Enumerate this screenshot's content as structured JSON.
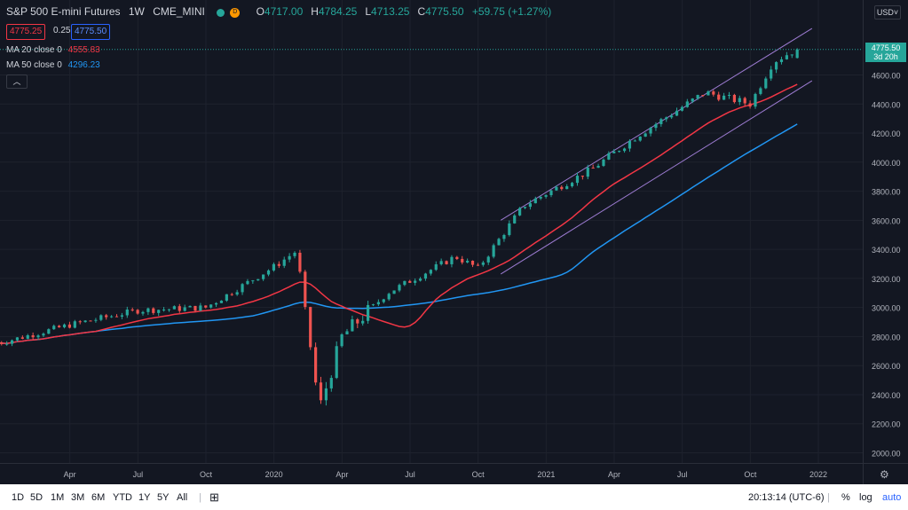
{
  "header": {
    "symbol": "S&P 500 E-mini Futures",
    "interval": "1W",
    "exchange": "CME_MINI",
    "market_status_icon": "D",
    "open_label": "O",
    "open": "4717.00",
    "high_label": "H",
    "high": "4784.25",
    "low_label": "L",
    "low": "4713.25",
    "close_label": "C",
    "close": "4775.50",
    "change": "+59.75 (+1.27%)"
  },
  "quote": {
    "bid": "4775.25",
    "spread": "0.25",
    "ask": "4775.50"
  },
  "indicators": [
    {
      "label": "MA 20 close 0",
      "value": "4555.83",
      "color": "#f23645"
    },
    {
      "label": "MA 50 close 0",
      "value": "4296.23",
      "color": "#2196f3"
    }
  ],
  "price_axis": {
    "currency": "USD",
    "ticks": [
      "4600.00",
      "4400.00",
      "4200.00",
      "4000.00",
      "3800.00",
      "3600.00",
      "3400.00",
      "3200.00",
      "3000.00",
      "2800.00",
      "2600.00",
      "2400.00",
      "2200.00",
      "2000.00"
    ],
    "last_price": "4775.50",
    "countdown": "3d 20h"
  },
  "time_axis": {
    "ticks": [
      "Apr",
      "Jul",
      "Oct",
      "2020",
      "Apr",
      "Jul",
      "Oct",
      "2021",
      "Apr",
      "Jul",
      "Oct",
      "2022"
    ]
  },
  "toolbar": {
    "ranges": [
      "1D",
      "5D",
      "1M",
      "3M",
      "6M",
      "YTD",
      "1Y",
      "5Y",
      "All"
    ],
    "time": "20:13:14 (UTC-6)",
    "percent": "%",
    "log": "log",
    "auto": "auto"
  },
  "colors": {
    "up": "#26a69a",
    "down": "#ef5350",
    "background": "#131722",
    "channel": "#9c7bd1"
  },
  "chart_data": {
    "type": "candlestick",
    "interval": "1W",
    "x_range": [
      "2019-01",
      "2022-01"
    ],
    "ylim": [
      1900,
      4900
    ],
    "key_points": [
      {
        "date": "2019-01",
        "price": 2760
      },
      {
        "date": "2019-04",
        "price": 2880
      },
      {
        "date": "2019-07",
        "price": 2980
      },
      {
        "date": "2019-10",
        "price": 3000
      },
      {
        "date": "2020-01",
        "price": 3280
      },
      {
        "date": "2020-02",
        "price": 3390
      },
      {
        "date": "2020-03",
        "price": 2300
      },
      {
        "date": "2020-04",
        "price": 2800
      },
      {
        "date": "2020-06",
        "price": 3100
      },
      {
        "date": "2020-09",
        "price": 3350
      },
      {
        "date": "2020-10",
        "price": 3270
      },
      {
        "date": "2020-12",
        "price": 3700
      },
      {
        "date": "2021-03",
        "price": 3950
      },
      {
        "date": "2021-05",
        "price": 4180
      },
      {
        "date": "2021-08",
        "price": 4480
      },
      {
        "date": "2021-10",
        "price": 4400
      },
      {
        "date": "2021-11",
        "price": 4690
      },
      {
        "date": "2021-12",
        "price": 4775.5
      }
    ]
  }
}
